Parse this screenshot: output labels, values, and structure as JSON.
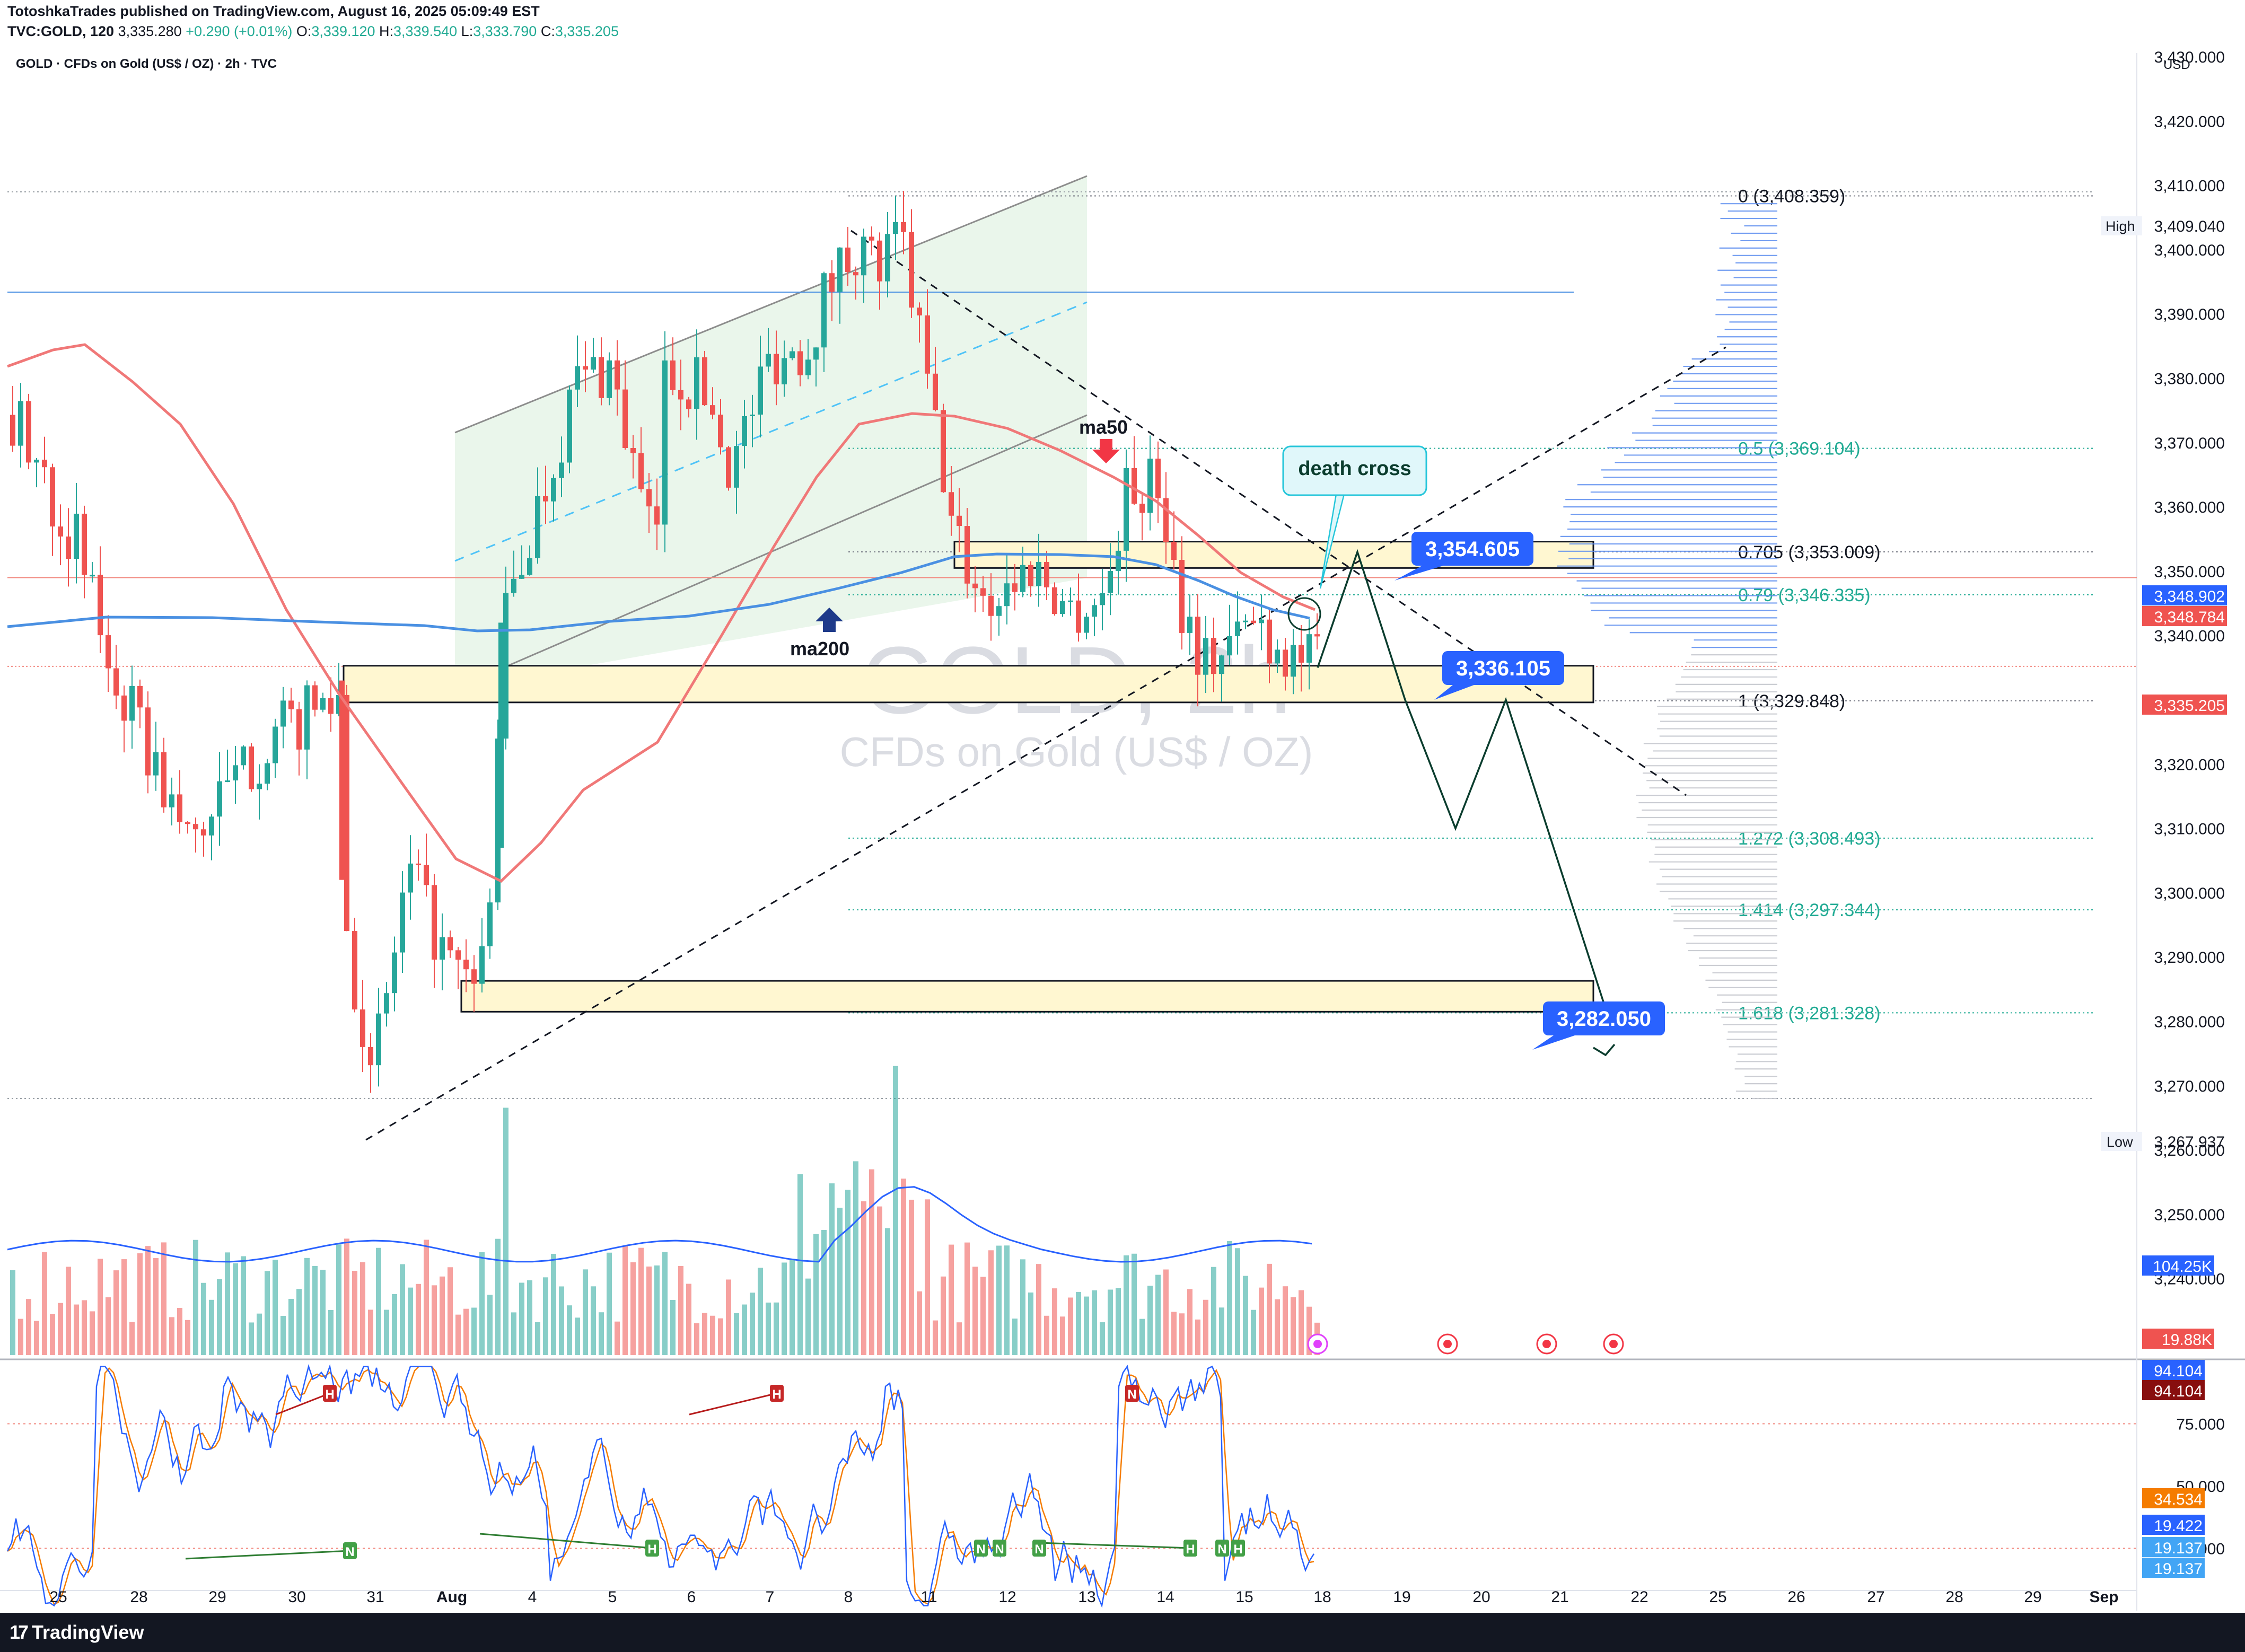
{
  "header": {
    "publisher": "TotoshkaTrades published on TradingView.com, August 16, 2025 05:09:49 EST",
    "symbol_line_label": "TVC:GOLD, 120",
    "last_price": "3,335.280",
    "change": "+0.290 (+0.01%)",
    "open": "3,339.120",
    "high": "3,339.540",
    "low": "3,333.790",
    "close": "3,335.205"
  },
  "chart_title": "GOLD · CFDs on Gold (US$ / OZ) · 2h · TVC",
  "watermark": {
    "line1": "GOLD, 2h",
    "line2": "CFDs on Gold (US$ / OZ)"
  },
  "currency": "USD",
  "footer": {
    "brand": "TradingView"
  },
  "colors": {
    "bull": "#26a69a",
    "bear": "#ef5350",
    "ma50": "#f07878",
    "ma200": "#4a90e2",
    "fib": "#22ab94",
    "label_blue": "#2962ff",
    "zone_fill": "#fff7d1",
    "channel_fill": "#e8f5e9"
  },
  "labels": {
    "ma50": "ma50",
    "ma200": "ma200",
    "death_cross": "death cross",
    "target_1": "3,354.605",
    "target_2": "3,336.105",
    "target_3": "3,282.050",
    "high_tag": "High",
    "high_value": "3,409.040",
    "low_tag": "Low",
    "low_value": "3,267.937"
  },
  "price_badges": [
    {
      "value": "3,348.902",
      "price": 3348.902,
      "color": "#2962ff"
    },
    {
      "value": "3,348.784",
      "price": 3348.784,
      "color": "#ef5350"
    },
    {
      "value": "3,335.205",
      "price": 3335.205,
      "color": "#ef5350"
    }
  ],
  "volume_badges": [
    {
      "value": "104.25K",
      "color": "#2962ff"
    },
    {
      "value": "19.88K",
      "color": "#ef5350"
    }
  ],
  "stoch_badges": [
    {
      "value": "94.104",
      "color": "#2962ff"
    },
    {
      "value": "94.104",
      "color": "#880e0e"
    },
    {
      "value": "34.534",
      "color": "#f57c00"
    },
    {
      "value": "19.422",
      "color": "#2962ff"
    },
    {
      "value": "19.137",
      "color": "#42a5f5"
    },
    {
      "value": "19.137",
      "color": "#42a5f5"
    }
  ],
  "fib_levels": [
    {
      "label": "0 (3,408.359)",
      "price": 3408.359
    },
    {
      "label": "0.5 (3,369.104)",
      "price": 3369.104
    },
    {
      "label": "0.705 (3,353.009)",
      "price": 3353.009
    },
    {
      "label": "0.79 (3,346.335)",
      "price": 3346.335
    },
    {
      "label": "1 (3,329.848)",
      "price": 3329.848
    },
    {
      "label": "1.272 (3,308.493)",
      "price": 3308.493
    },
    {
      "label": "1.414 (3,297.344)",
      "price": 3297.344
    },
    {
      "label": "1.618 (3,281.328)",
      "price": 3281.328
    }
  ],
  "chart_data": {
    "type": "candlestick",
    "timeframe": "2h",
    "y_axis": {
      "min": 3235,
      "max": 3435,
      "ticks": [
        "3,240.000",
        "3,250.000",
        "3,260.000",
        "3,270.000",
        "3,280.000",
        "3,290.000",
        "3,300.000",
        "3,310.000",
        "3,320.000",
        "3,330.000",
        "3,340.000",
        "3,350.000",
        "3,360.000",
        "3,370.000",
        "3,380.000",
        "3,390.000",
        "3,400.000",
        "3,410.000",
        "3,420.000",
        "3,430.000"
      ]
    },
    "x_axis": {
      "ticks": [
        "25",
        "28",
        "29",
        "30",
        "31",
        "Aug",
        "4",
        "5",
        "6",
        "7",
        "8",
        "11",
        "12",
        "13",
        "14",
        "15",
        "18",
        "19",
        "20",
        "21",
        "22",
        "25",
        "26",
        "27",
        "28",
        "29",
        "Sep"
      ]
    },
    "key_prices": {
      "high": 3409.04,
      "low": 3267.937,
      "last": 3335.205
    },
    "projection_path": [
      3335,
      3353,
      3330,
      3310,
      3330,
      3282
    ],
    "zones": [
      {
        "name": "upper-zone",
        "top": 3354.6,
        "bottom": 3350.5
      },
      {
        "name": "middle-zone",
        "top": 3335.3,
        "bottom": 3329.6
      },
      {
        "name": "lower-zone",
        "top": 3286.3,
        "bottom": 3281.5
      }
    ],
    "stoch_axis": {
      "ticks": [
        "75.000",
        "50.000",
        "25.000"
      ]
    },
    "annotations": [
      "ma50",
      "ma200",
      "death cross",
      "3,354.605",
      "3,336.105",
      "3,282.050"
    ]
  }
}
